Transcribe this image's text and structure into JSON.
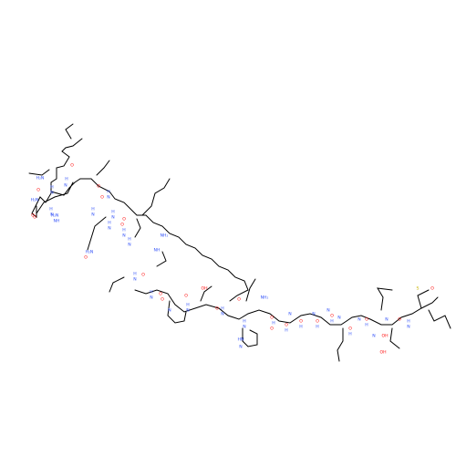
{
  "molecule": {
    "colors": {
      "bond": "#000000",
      "O": "#ff0d0d",
      "N": "#3050f8",
      "S": "#c8b400",
      "C": "#000000"
    },
    "labels": [
      {
        "t": "H₂N",
        "e": "N"
      },
      {
        "t": "O",
        "e": "O"
      },
      {
        "t": "H",
        "e": "N"
      },
      {
        "t": "N",
        "e": "N"
      },
      {
        "t": "O",
        "e": "O"
      },
      {
        "t": "H",
        "e": "N"
      },
      {
        "t": "N",
        "e": "N"
      },
      {
        "t": "H₂N",
        "e": "N"
      },
      {
        "t": "O",
        "e": "O"
      },
      {
        "t": "O",
        "e": "O"
      },
      {
        "t": "H",
        "e": "N"
      },
      {
        "t": "N",
        "e": "N"
      },
      {
        "t": "O",
        "e": "O"
      },
      {
        "t": "H",
        "e": "N"
      },
      {
        "t": "N",
        "e": "N"
      },
      {
        "t": "H",
        "e": "N"
      },
      {
        "t": "N",
        "e": "N"
      },
      {
        "t": "H₂N",
        "e": "N"
      },
      {
        "t": "NH",
        "e": "N"
      },
      {
        "t": "O",
        "e": "O"
      },
      {
        "t": "H",
        "e": "N"
      },
      {
        "t": "N",
        "e": "N"
      },
      {
        "t": "O",
        "e": "O"
      },
      {
        "t": "H",
        "e": "N"
      },
      {
        "t": "N",
        "e": "N"
      },
      {
        "t": "H₂N",
        "e": "N"
      },
      {
        "t": "O",
        "e": "O"
      },
      {
        "t": "O",
        "e": "O"
      },
      {
        "t": "H",
        "e": "N"
      },
      {
        "t": "N",
        "e": "N"
      },
      {
        "t": "H",
        "e": "N"
      },
      {
        "t": "N",
        "e": "N"
      },
      {
        "t": "NH₂",
        "e": "N"
      },
      {
        "t": "NH",
        "e": "N"
      },
      {
        "t": "O",
        "e": "O"
      },
      {
        "t": "H",
        "e": "N"
      },
      {
        "t": "N",
        "e": "N"
      },
      {
        "t": "O",
        "e": "O"
      },
      {
        "t": "H",
        "e": "N"
      },
      {
        "t": "N",
        "e": "N"
      },
      {
        "t": "O",
        "e": "O"
      },
      {
        "t": "N",
        "e": "N"
      },
      {
        "t": "O",
        "e": "O"
      },
      {
        "t": "H",
        "e": "N"
      },
      {
        "t": "N",
        "e": "N"
      },
      {
        "t": "OH",
        "e": "O"
      },
      {
        "t": "O",
        "e": "O"
      },
      {
        "t": "H",
        "e": "N"
      },
      {
        "t": "N",
        "e": "N"
      },
      {
        "t": "O",
        "e": "O"
      },
      {
        "t": "H",
        "e": "N"
      },
      {
        "t": "N",
        "e": "N"
      },
      {
        "t": "NH₂",
        "e": "N"
      },
      {
        "t": "O",
        "e": "O"
      },
      {
        "t": "O",
        "e": "O"
      },
      {
        "t": "H",
        "e": "N"
      },
      {
        "t": "N",
        "e": "N"
      },
      {
        "t": "HN",
        "e": "N"
      },
      {
        "t": "N",
        "e": "N"
      },
      {
        "t": "O",
        "e": "O"
      },
      {
        "t": "H",
        "e": "N"
      },
      {
        "t": "N",
        "e": "N"
      },
      {
        "t": "O",
        "e": "O"
      },
      {
        "t": "H",
        "e": "N"
      },
      {
        "t": "N",
        "e": "N"
      },
      {
        "t": "O",
        "e": "O"
      },
      {
        "t": "H",
        "e": "N"
      },
      {
        "t": "N",
        "e": "N"
      },
      {
        "t": "O",
        "e": "O"
      },
      {
        "t": "H",
        "e": "N"
      },
      {
        "t": "N",
        "e": "N"
      },
      {
        "t": "O",
        "e": "O"
      },
      {
        "t": "H",
        "e": "N"
      },
      {
        "t": "N",
        "e": "N"
      },
      {
        "t": "O",
        "e": "O"
      },
      {
        "t": "H",
        "e": "N"
      },
      {
        "t": "N",
        "e": "N"
      },
      {
        "t": "OH",
        "e": "O"
      },
      {
        "t": "O",
        "e": "O"
      },
      {
        "t": "H",
        "e": "N"
      },
      {
        "t": "N",
        "e": "N"
      },
      {
        "t": "OH",
        "e": "O"
      },
      {
        "t": "O",
        "e": "O"
      },
      {
        "t": "S",
        "e": "S"
      }
    ]
  }
}
